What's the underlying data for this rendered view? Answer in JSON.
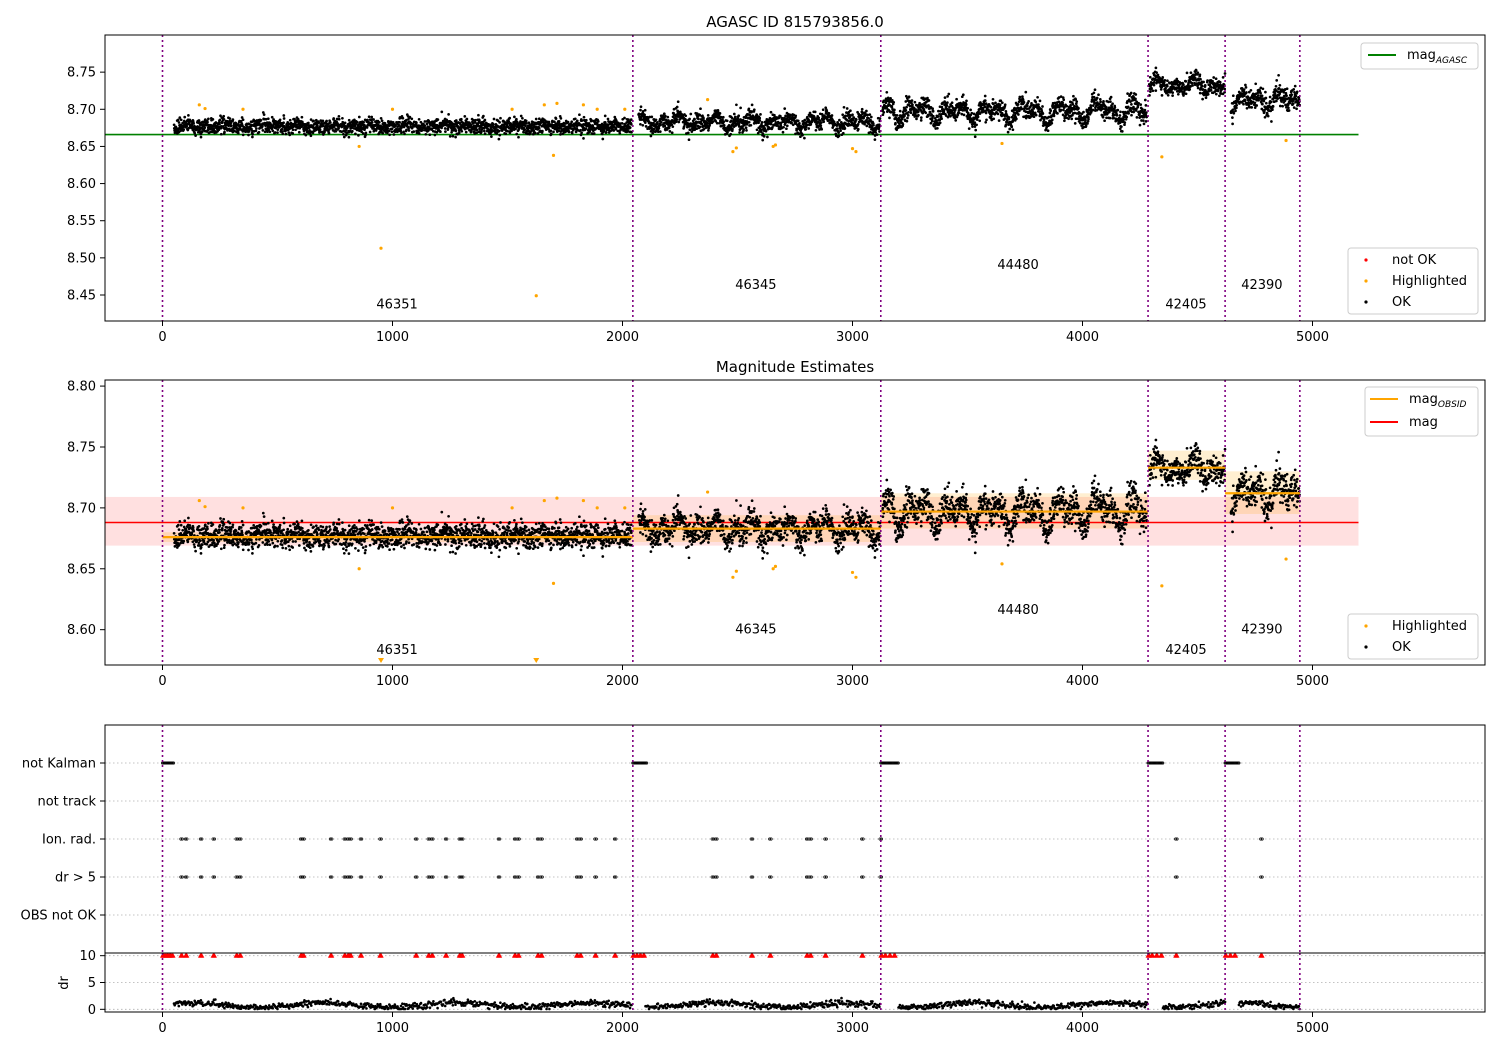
{
  "chart_data": [
    {
      "type": "scatter",
      "title": "AGASC ID 815793856.0",
      "xlabel": "",
      "ylabel": "",
      "xlim": [
        -250,
        5750
      ],
      "ylim": [
        8.415,
        8.8
      ],
      "xticks": [
        0,
        1000,
        2000,
        3000,
        4000,
        5000
      ],
      "yticks": [
        8.45,
        8.5,
        8.55,
        8.6,
        8.65,
        8.7,
        8.75
      ],
      "grid": false,
      "legend": {
        "upper": {
          "placement": "upper-right",
          "entries": [
            "mag_AGASC"
          ]
        },
        "lower": {
          "placement": "lower-right",
          "entries": [
            "not OK",
            "Highlighted",
            "OK"
          ]
        }
      },
      "lines": [
        {
          "name": "mag_AGASC",
          "color": "#008000",
          "x": [
            -250,
            5200
          ],
          "y": [
            8.666,
            8.666
          ]
        }
      ],
      "obs_boundaries": [
        0,
        2045,
        3123,
        4285,
        4620,
        4945
      ],
      "obs_labels": [
        {
          "text": "46351",
          "x": 1020,
          "y": 8.432
        },
        {
          "text": "46345",
          "x": 2580,
          "y": 8.458
        },
        {
          "text": "44480",
          "x": 3720,
          "y": 8.485
        },
        {
          "text": "42405",
          "x": 4450,
          "y": 8.432
        },
        {
          "text": "42390",
          "x": 4780,
          "y": 8.458
        }
      ],
      "segments": [
        {
          "x": [
            50,
            2040
          ],
          "mean": 8.677,
          "spread": 0.007,
          "wave": 0.003
        },
        {
          "x": [
            2070,
            3120
          ],
          "mean": 8.683,
          "spread": 0.008,
          "wave": 0.01
        },
        {
          "x": [
            3130,
            4280
          ],
          "mean": 8.697,
          "spread": 0.009,
          "wave": 0.015
        },
        {
          "x": [
            4290,
            4620
          ],
          "mean": 8.733,
          "spread": 0.008,
          "wave": 0.01
        },
        {
          "x": [
            4645,
            4945
          ],
          "mean": 8.712,
          "spread": 0.01,
          "wave": 0.014
        }
      ],
      "highlighted": [
        {
          "x": 160,
          "y": 8.706
        },
        {
          "x": 185,
          "y": 8.701
        },
        {
          "x": 350,
          "y": 8.7
        },
        {
          "x": 855,
          "y": 8.65
        },
        {
          "x": 1000,
          "y": 8.7
        },
        {
          "x": 1520,
          "y": 8.7
        },
        {
          "x": 1660,
          "y": 8.706
        },
        {
          "x": 1700,
          "y": 8.638
        },
        {
          "x": 1715,
          "y": 8.708
        },
        {
          "x": 1830,
          "y": 8.706
        },
        {
          "x": 1890,
          "y": 8.7
        },
        {
          "x": 2010,
          "y": 8.7
        },
        {
          "x": 950,
          "y": 8.513
        },
        {
          "x": 1625,
          "y": 8.449
        },
        {
          "x": 2370,
          "y": 8.713
        },
        {
          "x": 2480,
          "y": 8.643
        },
        {
          "x": 2495,
          "y": 8.648
        },
        {
          "x": 2655,
          "y": 8.65
        },
        {
          "x": 2665,
          "y": 8.652
        },
        {
          "x": 3000,
          "y": 8.647
        },
        {
          "x": 3015,
          "y": 8.643
        },
        {
          "x": 3650,
          "y": 8.654
        },
        {
          "x": 4345,
          "y": 8.636
        },
        {
          "x": 4885,
          "y": 8.658
        }
      ],
      "legend_labels": {
        "mag_agasc": "mag",
        "mag_agasc_sub": "AGASC",
        "not_ok": "not OK",
        "highlighted": "Highlighted",
        "ok": "OK"
      },
      "colors": {
        "ok": "#000000",
        "highlighted": "#ffa500",
        "not_ok": "#ff0000",
        "mag_agasc": "#008000",
        "obs_boundary": "#800080"
      }
    },
    {
      "type": "scatter",
      "title": "Magnitude Estimates",
      "xlabel": "",
      "ylabel": "",
      "xlim": [
        -250,
        5750
      ],
      "ylim": [
        8.571,
        8.805
      ],
      "xticks": [
        0,
        1000,
        2000,
        3000,
        4000,
        5000
      ],
      "yticks": [
        8.6,
        8.65,
        8.7,
        8.75,
        8.8
      ],
      "grid": false,
      "legend": {
        "upper": {
          "placement": "upper-right",
          "entries": [
            "mag_OBSID",
            "mag"
          ]
        },
        "lower": {
          "placement": "lower-right",
          "entries": [
            "Highlighted",
            "OK"
          ]
        }
      },
      "mag": {
        "value": 8.688,
        "band": [
          8.669,
          8.709
        ],
        "x": [
          -250,
          5200
        ],
        "color": "#ff0000"
      },
      "mag_obsid": [
        {
          "x": [
            0,
            2045
          ],
          "value": 8.676,
          "band": [
            8.672,
            8.68
          ]
        },
        {
          "x": [
            2045,
            3123
          ],
          "value": 8.683,
          "band": [
            8.672,
            8.694
          ]
        },
        {
          "x": [
            3123,
            4285
          ],
          "value": 8.697,
          "band": [
            8.683,
            8.712
          ]
        },
        {
          "x": [
            4285,
            4620
          ],
          "value": 8.733,
          "band": [
            8.723,
            8.747
          ]
        },
        {
          "x": [
            4620,
            4945
          ],
          "value": 8.712,
          "band": [
            8.695,
            8.73
          ]
        }
      ],
      "obs_labels": [
        {
          "text": "46351",
          "x": 1020,
          "y": 8.58
        },
        {
          "text": "46345",
          "x": 2580,
          "y": 8.597
        },
        {
          "text": "44480",
          "x": 3720,
          "y": 8.613
        },
        {
          "text": "42405",
          "x": 4450,
          "y": 8.58
        },
        {
          "text": "42390",
          "x": 4780,
          "y": 8.597
        }
      ],
      "offscale_markers": [
        {
          "x": 950
        },
        {
          "x": 1625
        }
      ],
      "legend_labels": {
        "mag_obsid": "mag",
        "mag_obsid_sub": "OBSID",
        "mag": "mag",
        "highlighted": "Highlighted",
        "ok": "OK"
      },
      "colors": {
        "mag_obsid": "#ffa500",
        "mag": "#ff0000"
      }
    },
    {
      "type": "scatter",
      "title": "",
      "xlabel": "",
      "ylabel": "",
      "xlim": [
        -250,
        5750
      ],
      "categories": [
        "not Kalman",
        "not track",
        "Ion. rad.",
        "dr > 5",
        "OBS not OK"
      ],
      "flags": {
        "not Kalman": [
          [
            0,
            50
          ],
          [
            2045,
            2105
          ],
          [
            3123,
            3200
          ],
          [
            4285,
            4350
          ],
          [
            4620,
            4680
          ]
        ],
        "not track": [],
        "Ion. rad.": [
          80,
          100,
          165,
          220,
          320,
          335,
          600,
          610,
          730,
          790,
          805,
          815,
          860,
          945,
          1100,
          1155,
          1170,
          1230,
          1290,
          1300,
          1460,
          1530,
          1545,
          1630,
          1645,
          1800,
          1815,
          1880,
          1965,
          2390,
          2405,
          2560,
          2640,
          2800,
          2815,
          2880,
          3040,
          3120,
          4405,
          4775
        ],
        "dr > 5": [
          80,
          100,
          165,
          220,
          320,
          335,
          600,
          610,
          730,
          790,
          805,
          815,
          860,
          945,
          1100,
          1155,
          1170,
          1230,
          1290,
          1300,
          1460,
          1530,
          1545,
          1630,
          1645,
          1800,
          1815,
          1880,
          1965,
          2390,
          2405,
          2560,
          2640,
          2800,
          2815,
          2880,
          3040,
          3120,
          4405,
          4775
        ],
        "OBS not OK": []
      }
    },
    {
      "type": "scatter",
      "title": "",
      "xlabel": "",
      "ylabel": "dr",
      "xlim": [
        -250,
        5750
      ],
      "ylim": [
        -0.5,
        10.5
      ],
      "xticks": [
        0,
        1000,
        2000,
        3000,
        4000,
        5000
      ],
      "yticks": [
        0,
        5,
        10
      ],
      "grid": true,
      "clipped_value": 10,
      "clipped_x": [
        0,
        10,
        20,
        30,
        40,
        80,
        100,
        165,
        220,
        320,
        335,
        600,
        610,
        730,
        790,
        805,
        815,
        860,
        945,
        1100,
        1155,
        1170,
        1230,
        1290,
        1300,
        1460,
        1530,
        1545,
        1630,
        1645,
        1800,
        1815,
        1880,
        1965,
        2045,
        2060,
        2075,
        2090,
        2390,
        2405,
        2560,
        2640,
        2800,
        2815,
        2880,
        3040,
        3123,
        3140,
        3160,
        3180,
        4285,
        4300,
        4320,
        4340,
        4405,
        4620,
        4640,
        4660,
        4775
      ],
      "baseline": {
        "segments": [
          [
            50,
            2040
          ],
          [
            2100,
            3120
          ],
          [
            3200,
            4280
          ],
          [
            4350,
            4620
          ],
          [
            4680,
            4945
          ]
        ],
        "mean": 0.8,
        "spread": 0.5
      }
    }
  ],
  "axes_text": {
    "title_top": "AGASC ID 815793856.0",
    "title_mid": "Magnitude Estimates",
    "dr_label": "dr"
  }
}
